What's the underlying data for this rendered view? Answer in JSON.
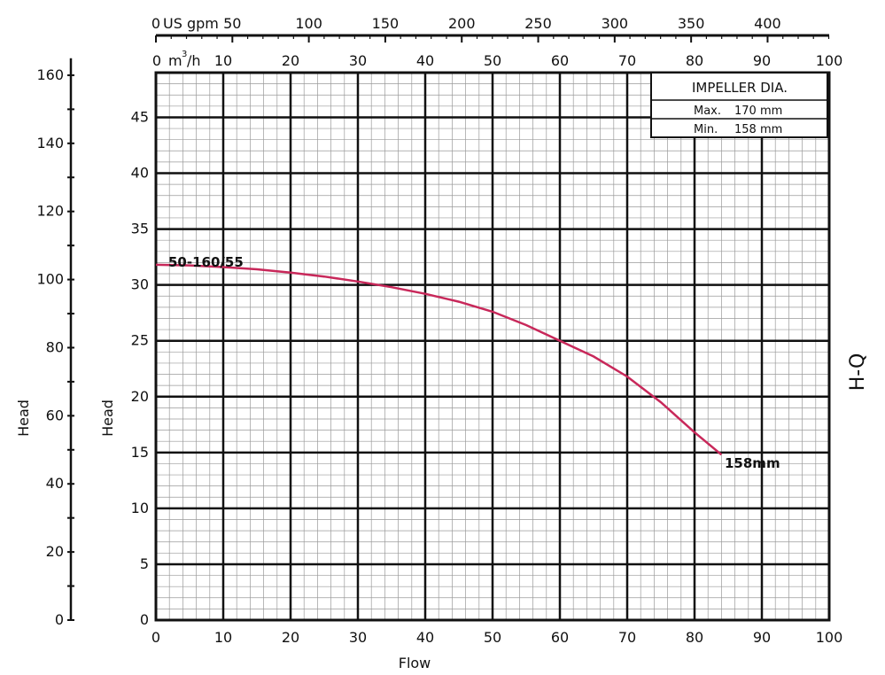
{
  "chart_data": {
    "type": "line",
    "xlabel": "Flow",
    "ylabel_left": "Head",
    "ylabel_inner": "Head",
    "side_label": "H-Q",
    "x_m3h": {
      "unit_label": "m",
      "unit_suffix": "/h",
      "ticks": [
        "0",
        "10",
        "20",
        "30",
        "40",
        "50",
        "60",
        "70",
        "80",
        "90",
        "100"
      ],
      "range": [
        0,
        100
      ]
    },
    "x_usgpm": {
      "unit_label": "US gpm",
      "ticks": [
        "0",
        "50",
        "100",
        "150",
        "200",
        "250",
        "300",
        "350",
        "400"
      ]
    },
    "x_bottom_ticks": [
      "0",
      "10",
      "20",
      "30",
      "40",
      "50",
      "60",
      "70",
      "80",
      "90",
      "100"
    ],
    "y_m": {
      "ticks": [
        "0",
        "5",
        "10",
        "15",
        "20",
        "25",
        "30",
        "35",
        "40",
        "45"
      ],
      "range": [
        0,
        49
      ]
    },
    "y_ft": {
      "ticks": [
        "0",
        "20",
        "40",
        "60",
        "80",
        "100",
        "120",
        "140",
        "160"
      ]
    },
    "grid": true,
    "legend": {
      "title": "IMPELLER DIA.",
      "rows": [
        {
          "label": "Max.",
          "value": "170  mm"
        },
        {
          "label": "Min.",
          "value": "158  mm"
        }
      ]
    },
    "series": [
      {
        "name": "50-160/55",
        "end_label": "158mm",
        "color": "#c8285a",
        "x": [
          0,
          5,
          10,
          15,
          20,
          25,
          30,
          35,
          40,
          45,
          50,
          55,
          60,
          65,
          70,
          75,
          80,
          84
        ],
        "y": [
          31.8,
          31.75,
          31.6,
          31.4,
          31.1,
          30.75,
          30.3,
          29.8,
          29.2,
          28.5,
          27.6,
          26.4,
          25.0,
          23.6,
          21.8,
          19.5,
          16.8,
          14.8
        ]
      }
    ]
  }
}
